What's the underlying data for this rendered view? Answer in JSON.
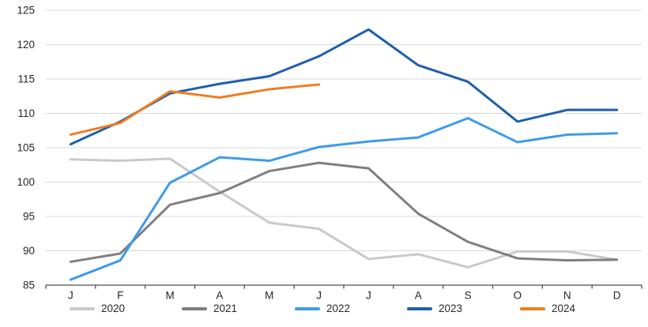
{
  "chart_data": {
    "type": "line",
    "categories": [
      "J",
      "F",
      "M",
      "A",
      "M",
      "J",
      "J",
      "A",
      "S",
      "O",
      "N",
      "D"
    ],
    "series": [
      {
        "name": "2020",
        "color": "#C9C9C9",
        "values": [
          103.3,
          103.1,
          103.4,
          98.6,
          94.1,
          93.2,
          88.8,
          89.5,
          87.6,
          89.9,
          89.9,
          88.7
        ]
      },
      {
        "name": "2021",
        "color": "#7F7F7F",
        "values": [
          88.4,
          89.6,
          96.7,
          98.4,
          101.6,
          102.8,
          102.0,
          95.4,
          91.3,
          88.9,
          88.6,
          88.7
        ]
      },
      {
        "name": "2022",
        "color": "#3E9BE9",
        "values": [
          85.8,
          88.6,
          99.9,
          103.6,
          103.1,
          105.1,
          105.9,
          106.5,
          109.3,
          105.8,
          106.9,
          107.1
        ]
      },
      {
        "name": "2023",
        "color": "#1F5FAA",
        "values": [
          105.5,
          108.8,
          112.9,
          114.3,
          115.4,
          118.3,
          122.2,
          117.0,
          114.6,
          108.8,
          110.5,
          110.5
        ]
      },
      {
        "name": "2024",
        "color": "#EF7D22",
        "values": [
          106.9,
          108.6,
          113.2,
          112.3,
          113.5,
          114.2
        ]
      }
    ],
    "yticks": [
      85,
      90,
      95,
      100,
      105,
      110,
      115,
      120,
      125
    ],
    "ylim": [
      85,
      125
    ],
    "grid": true,
    "legend_position": "bottom",
    "colors": {
      "grid_color": "#D9D9D9",
      "axis_color": "#4d4d4d",
      "label_color": "#262626"
    }
  }
}
